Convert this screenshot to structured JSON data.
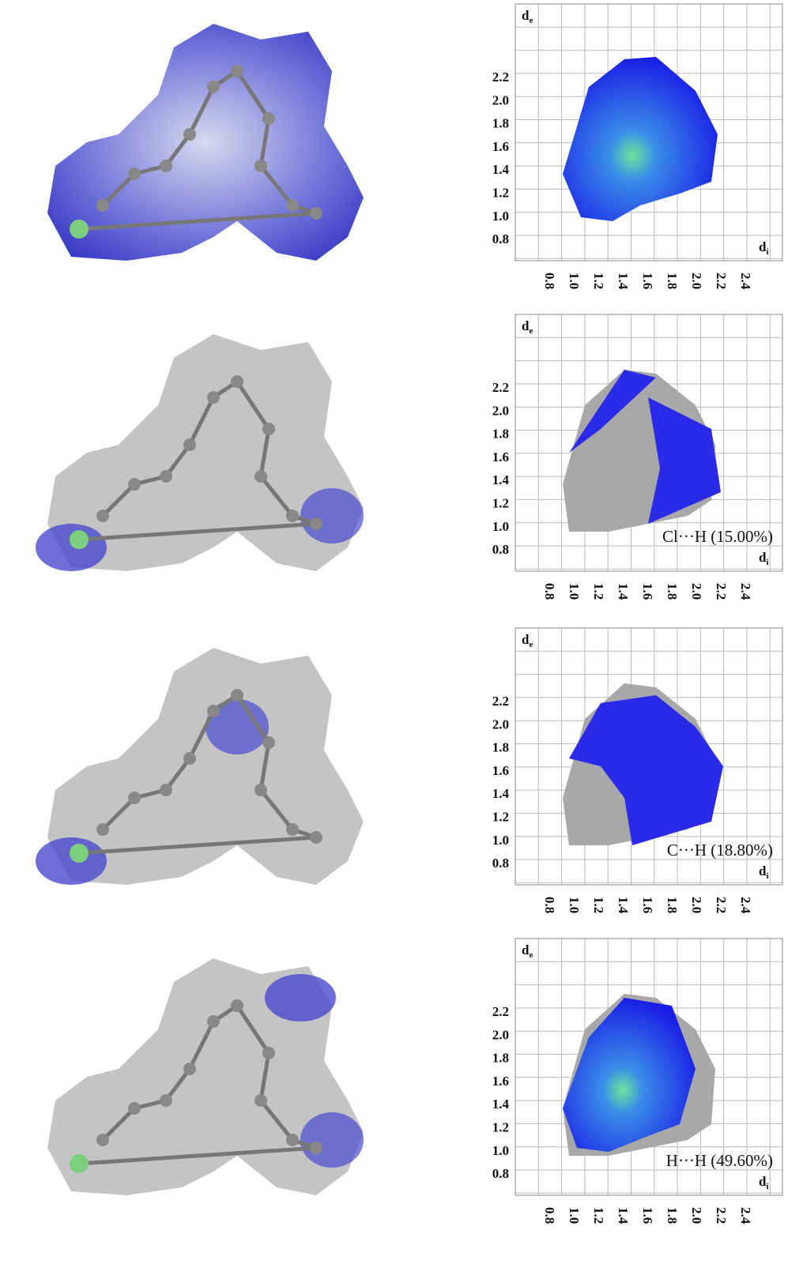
{
  "panels": [
    {
      "y_label": "d",
      "y_label_sub": "e",
      "x_label": "d",
      "x_label_sub": "i",
      "yticks": [
        "2.2",
        "2.0",
        "1.8",
        "1.6",
        "1.4",
        "1.2",
        "1.0",
        "0.8"
      ],
      "xticks": [
        "0.8",
        "1.0",
        "1.2",
        "1.4",
        "1.6",
        "1.8",
        "2.0",
        "2.2",
        "2.4"
      ]
    },
    {
      "y_label": "d",
      "y_label_sub": "e",
      "x_label": "d",
      "x_label_sub": "i",
      "yticks": [
        "2.2",
        "2.0",
        "1.8",
        "1.6",
        "1.4",
        "1.2",
        "1.0",
        "0.8"
      ],
      "xticks": [
        "0.8",
        "1.0",
        "1.2",
        "1.4",
        "1.6",
        "1.8",
        "2.0",
        "2.2",
        "2.4"
      ],
      "caption": "Cl···H (15.00%)"
    },
    {
      "y_label": "d",
      "y_label_sub": "e",
      "x_label": "d",
      "x_label_sub": "i",
      "yticks": [
        "2.2",
        "2.0",
        "1.8",
        "1.6",
        "1.4",
        "1.2",
        "1.0",
        "0.8"
      ],
      "xticks": [
        "0.8",
        "1.0",
        "1.2",
        "1.4",
        "1.6",
        "1.8",
        "2.0",
        "2.2",
        "2.4"
      ],
      "caption": "C···H (18.80%)"
    },
    {
      "y_label": "d",
      "y_label_sub": "e",
      "x_label": "d",
      "x_label_sub": "i",
      "yticks": [
        "2.2",
        "2.0",
        "1.8",
        "1.6",
        "1.4",
        "1.2",
        "1.0",
        "0.8"
      ],
      "xticks": [
        "0.8",
        "1.0",
        "1.2",
        "1.4",
        "1.6",
        "1.8",
        "2.0",
        "2.2",
        "2.4"
      ],
      "caption": "H···H (49.60%)"
    }
  ]
}
